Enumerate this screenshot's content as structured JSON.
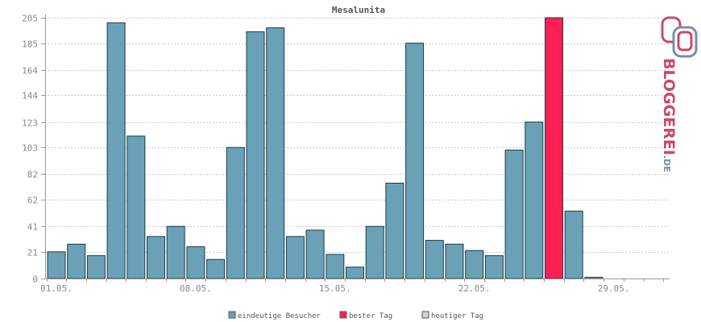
{
  "chart_data": {
    "type": "bar",
    "title": "Mesalunita",
    "xlabel": "",
    "ylabel": "",
    "y_ticks": [
      0,
      21,
      41,
      62,
      82,
      103,
      123,
      144,
      164,
      185,
      205
    ],
    "ylim": [
      0,
      205
    ],
    "x_tick_labels": [
      {
        "day_index": 0,
        "label": "01.05."
      },
      {
        "day_index": 7,
        "label": "08.05."
      },
      {
        "day_index": 14,
        "label": "15.05."
      },
      {
        "day_index": 21,
        "label": "22.05."
      },
      {
        "day_index": 28,
        "label": "29.05."
      }
    ],
    "series": [
      {
        "name": "eindeutige Besucher",
        "color": "#6aa1b7",
        "values": [
          21,
          27,
          18,
          201,
          112,
          33,
          41,
          25,
          15,
          103,
          194,
          197,
          33,
          38,
          19,
          9,
          41,
          75,
          185,
          30,
          27,
          22,
          18,
          101,
          123,
          0,
          53,
          1,
          0,
          0,
          0
        ]
      }
    ],
    "best_day": {
      "day_index": 25,
      "value": 205,
      "color": "#ff1f55"
    },
    "today_color": "#d3d3d3",
    "grid": true,
    "legend_position": "bottom-center"
  },
  "legend": {
    "items": [
      {
        "label": "eindeutige Besucher",
        "color": "#6aa1b7"
      },
      {
        "label": "bester Tag",
        "color": "#ff1f55"
      },
      {
        "label": "heutiger Tag",
        "color": "#d3d3d3"
      }
    ]
  },
  "branding": {
    "text": "BLOGGEREI",
    "suffix": ".DE",
    "color": "#c94a6a",
    "suffix_color": "#7a8ca8"
  }
}
